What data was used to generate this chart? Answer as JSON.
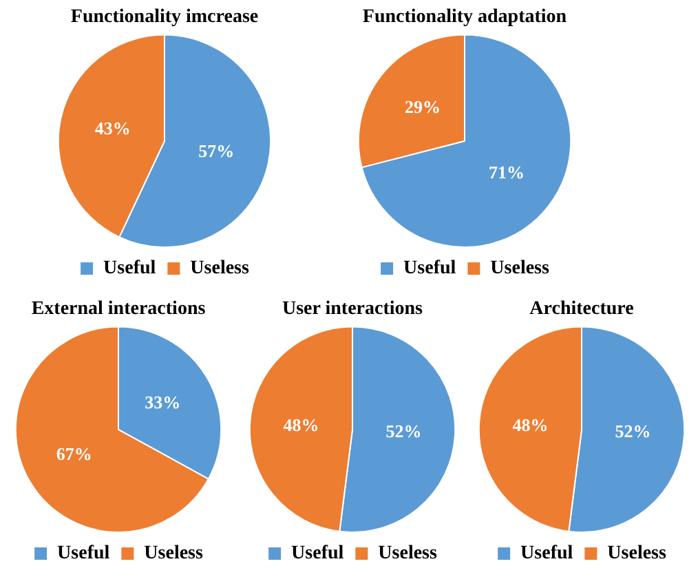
{
  "chart_data": [
    {
      "type": "pie",
      "title": "Functionality imcrease",
      "categories": [
        "Useful",
        "Useless"
      ],
      "values": [
        57,
        43
      ],
      "colors": [
        "#5b9bd5",
        "#ed7d31"
      ],
      "value_labels": [
        "57%",
        "43%"
      ],
      "legend": "bottom"
    },
    {
      "type": "pie",
      "title": "Functionality adaptation",
      "categories": [
        "Useful",
        "Useless"
      ],
      "values": [
        71,
        29
      ],
      "colors": [
        "#5b9bd5",
        "#ed7d31"
      ],
      "value_labels": [
        "71%",
        "29%"
      ],
      "legend": "bottom"
    },
    {
      "type": "pie",
      "title": "External interactions",
      "categories": [
        "Useful",
        "Useless"
      ],
      "values": [
        33,
        67
      ],
      "colors": [
        "#5b9bd5",
        "#ed7d31"
      ],
      "value_labels": [
        "33%",
        "67%"
      ],
      "legend": "bottom"
    },
    {
      "type": "pie",
      "title": "User interactions",
      "categories": [
        "Useful",
        "Useless"
      ],
      "values": [
        52,
        48
      ],
      "colors": [
        "#5b9bd5",
        "#ed7d31"
      ],
      "value_labels": [
        "52%",
        "48%"
      ],
      "legend": "bottom"
    },
    {
      "type": "pie",
      "title": "Architecture",
      "categories": [
        "Useful",
        "Useless"
      ],
      "values": [
        52,
        48
      ],
      "colors": [
        "#5b9bd5",
        "#ed7d31"
      ],
      "value_labels": [
        "52%",
        "48%"
      ],
      "legend": "bottom"
    }
  ]
}
